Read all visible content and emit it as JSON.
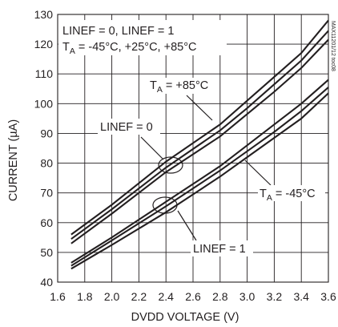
{
  "chart_data": {
    "type": "line",
    "title": "",
    "xlabel": "DVDD VOLTAGE (V)",
    "ylabel": "CURRENT (µA)",
    "xlim": [
      1.6,
      3.6
    ],
    "ylim": [
      40,
      130
    ],
    "x_ticks": [
      "1.6",
      "1.8",
      "2.0",
      "2.2",
      "2.4",
      "2.6",
      "2.8",
      "3.0",
      "3.2",
      "3.4",
      "3.6"
    ],
    "y_ticks": [
      "40",
      "50",
      "60",
      "70",
      "80",
      "90",
      "100",
      "110",
      "120",
      "130"
    ],
    "grid": true,
    "series": [
      {
        "group": "LINEF = 0",
        "temperature": "+85°C",
        "x": [
          1.7,
          2.0,
          2.4,
          2.8,
          3.0,
          3.2,
          3.4,
          3.6
        ],
        "y": [
          56,
          66,
          80.5,
          93,
          101,
          109,
          117,
          128
        ]
      },
      {
        "group": "LINEF = 0",
        "temperature": "+25°C",
        "x": [
          1.7,
          2.0,
          2.4,
          2.8,
          3.0,
          3.2,
          3.4,
          3.6
        ],
        "y": [
          54.5,
          64.5,
          78.5,
          91,
          98.5,
          106.5,
          114.5,
          124.5
        ]
      },
      {
        "group": "LINEF = 0",
        "temperature": "-45°C",
        "x": [
          1.7,
          2.0,
          2.4,
          2.8,
          3.0,
          3.2,
          3.4,
          3.6
        ],
        "y": [
          53,
          63,
          77,
          89,
          96.5,
          104,
          112,
          121.5
        ]
      },
      {
        "group": "LINEF = 1",
        "temperature": "+85°C",
        "x": [
          1.7,
          2.0,
          2.4,
          2.8,
          3.0,
          3.2,
          3.4,
          3.6
        ],
        "y": [
          46.5,
          55,
          67,
          79,
          86,
          93,
          100,
          108
        ]
      },
      {
        "group": "LINEF = 1",
        "temperature": "+25°C",
        "x": [
          1.7,
          2.0,
          2.4,
          2.8,
          3.0,
          3.2,
          3.4,
          3.6
        ],
        "y": [
          45.5,
          54,
          65.5,
          77.5,
          84,
          90.5,
          97.5,
          105.5
        ]
      },
      {
        "group": "LINEF = 1",
        "temperature": "-45°C",
        "x": [
          1.7,
          2.0,
          2.4,
          2.8,
          3.0,
          3.2,
          3.4,
          3.6
        ],
        "y": [
          44.5,
          52.5,
          63.5,
          75.5,
          82,
          88.5,
          95,
          103.5
        ]
      }
    ],
    "annotations": {
      "conditions_line1": "LINEF = 0, LINEF = 1",
      "conditions_line2_prefix": "T",
      "conditions_line2_sub": "A",
      "conditions_line2_suffix": " = -45°C, +25°C, +85°C",
      "hot_label_prefix": "T",
      "hot_label_sub": "A",
      "hot_label_suffix": " = +85°C",
      "cold_label_prefix": "T",
      "cold_label_sub": "A",
      "cold_label_suffix": " = -45°C",
      "linef0_label": "LINEF = 0",
      "linef1_label": "LINEF = 1"
    },
    "side_code": "MAX11201/12 toc08"
  }
}
